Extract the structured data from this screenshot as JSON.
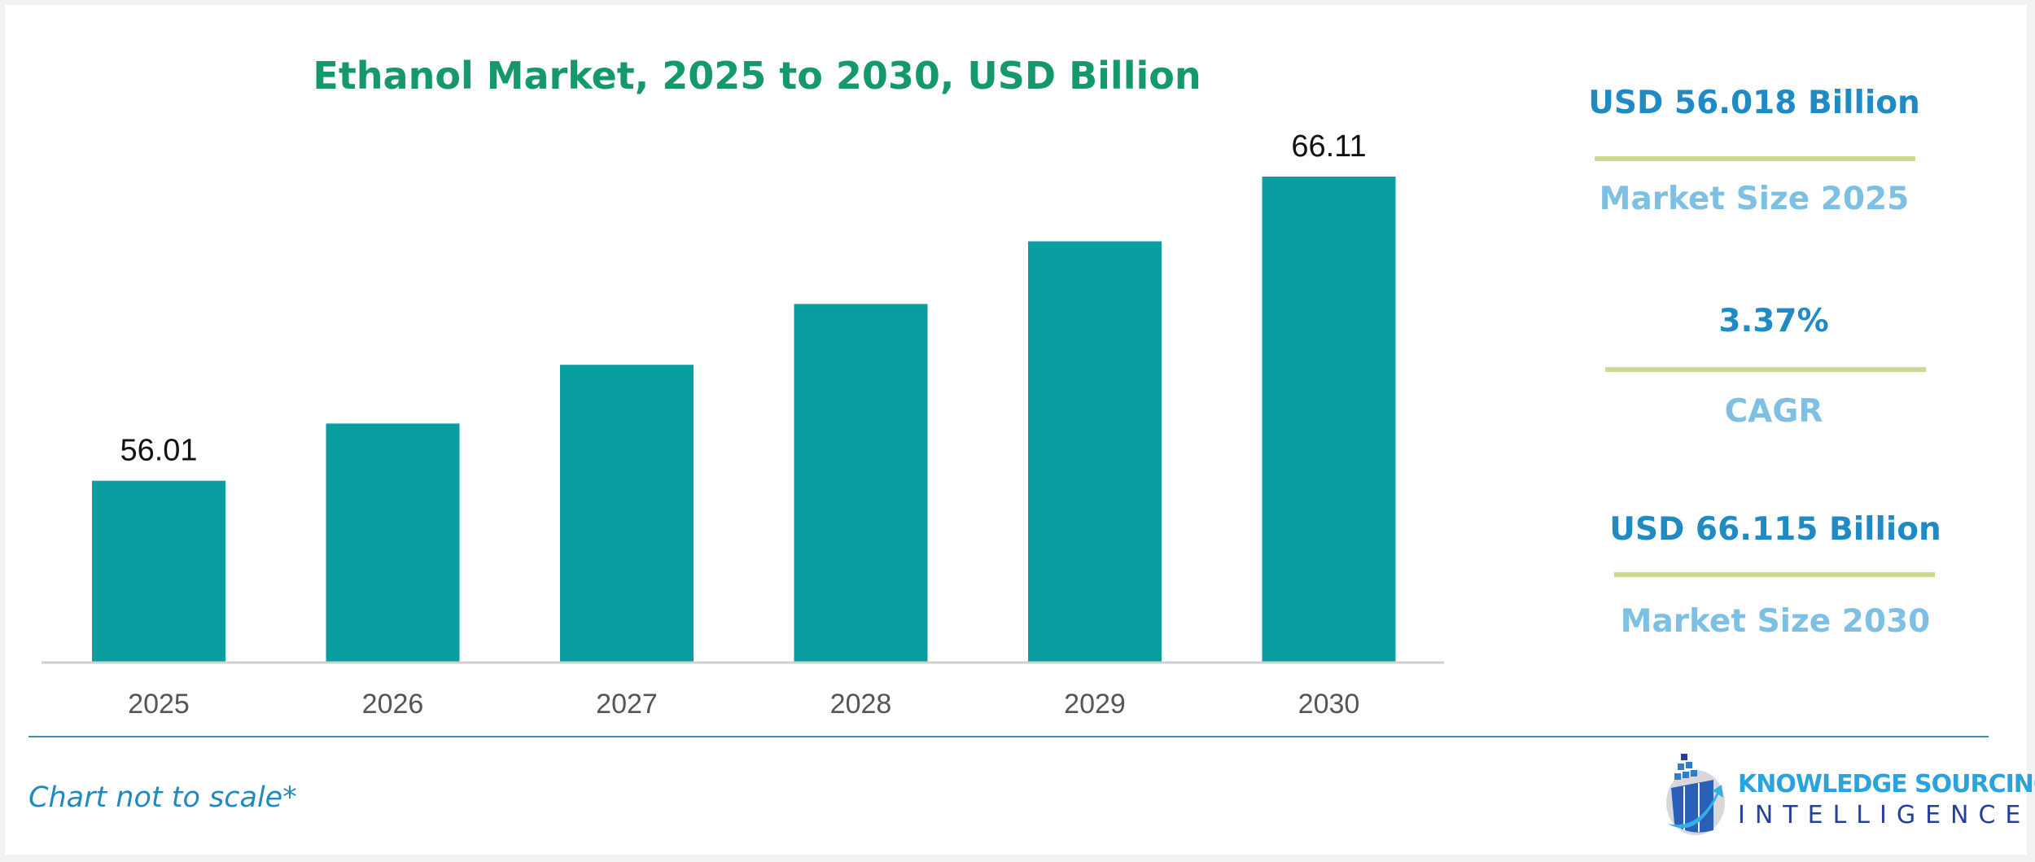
{
  "chart_data": {
    "type": "bar",
    "title": "Ethanol Market, 2025 to 2030, USD Billion",
    "categories": [
      "2025",
      "2026",
      "2027",
      "2028",
      "2029",
      "2030"
    ],
    "values": [
      56.01,
      57.91,
      59.86,
      61.88,
      63.96,
      66.11
    ],
    "data_labels": {
      "2025": "56.01",
      "2030": "66.11"
    },
    "bar_color": "#0a9ea0",
    "ylim": [
      50,
      68
    ],
    "grid": false,
    "xlabel": "",
    "ylabel": ""
  },
  "kpis": [
    {
      "value": "USD 56.018 Billion",
      "label": "Market Size 2025"
    },
    {
      "value": "3.37%",
      "label": "CAGR"
    },
    {
      "value": "USD 66.115 Billion",
      "label": "Market Size 2030"
    }
  ],
  "colors": {
    "title": "#15996b",
    "kpi_value": "#1f8ac3",
    "kpi_label": "#7dc0e3",
    "divider": "#cdd890"
  },
  "footnote": "Chart not to scale*",
  "logo": {
    "line1": "KNOWLEDGE SOURCING",
    "line2": "INTELLIGENCE"
  }
}
